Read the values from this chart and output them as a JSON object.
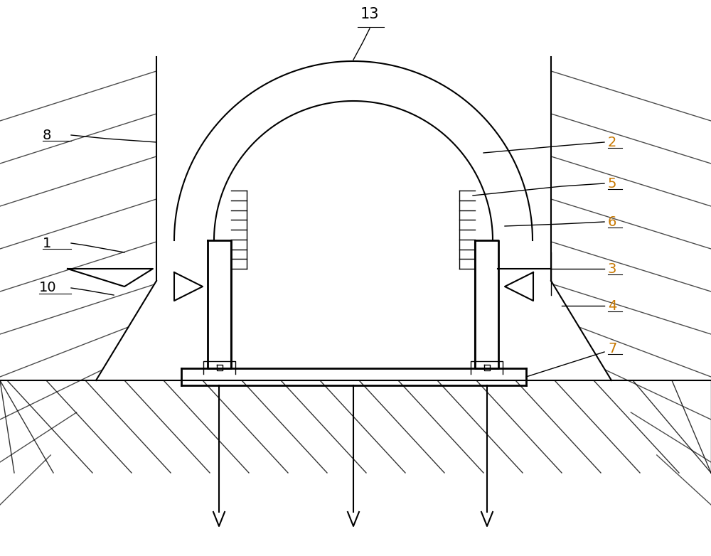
{
  "bg_color": "#ffffff",
  "line_color": "#000000",
  "label_color_orange": "#c87800",
  "label_color_black": "#000000",
  "fig_width": 10.0,
  "fig_height": 7.82,
  "dpi": 100
}
